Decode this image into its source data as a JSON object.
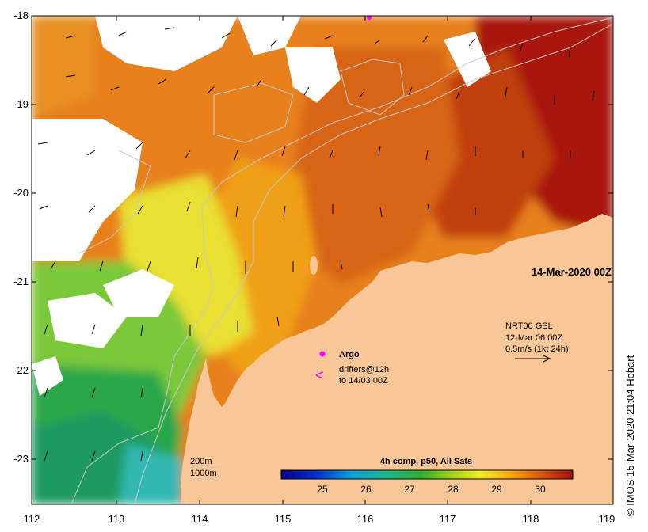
{
  "map": {
    "date_label": "14-Mar-2020 00Z",
    "credit": "© IMOS 15-Mar-2020 21:04 Hobart",
    "x_ticks": [
      "112",
      "113",
      "114",
      "115",
      "116",
      "117",
      "118",
      "119"
    ],
    "y_ticks": [
      "-18",
      "-19",
      "-20",
      "-21",
      "-22",
      "-23"
    ],
    "currents": {
      "product": "NRT00 GSL",
      "time": "12-Mar 06:00Z",
      "scale": "0.5m/s (1kt 24h)"
    },
    "legend": {
      "argo": "Argo",
      "drifter_symbol": "<",
      "drifters_line1": "drifters@12h",
      "drifters_line2": "to 14/03 00Z"
    },
    "bathymetry": {
      "contour1": "200m",
      "contour2": "1000m"
    },
    "colorbar": {
      "title": "4h comp, p50, All Sats",
      "ticks": [
        "25",
        "26",
        "27",
        "28",
        "29",
        "30"
      ]
    },
    "colors": {
      "land": "#f8c697",
      "sst_warm": "#a01010",
      "sst_orange": "#e07a10",
      "sst_yellow": "#f0e030",
      "sst_green": "#40b040",
      "argo": "#ff00ff"
    }
  }
}
